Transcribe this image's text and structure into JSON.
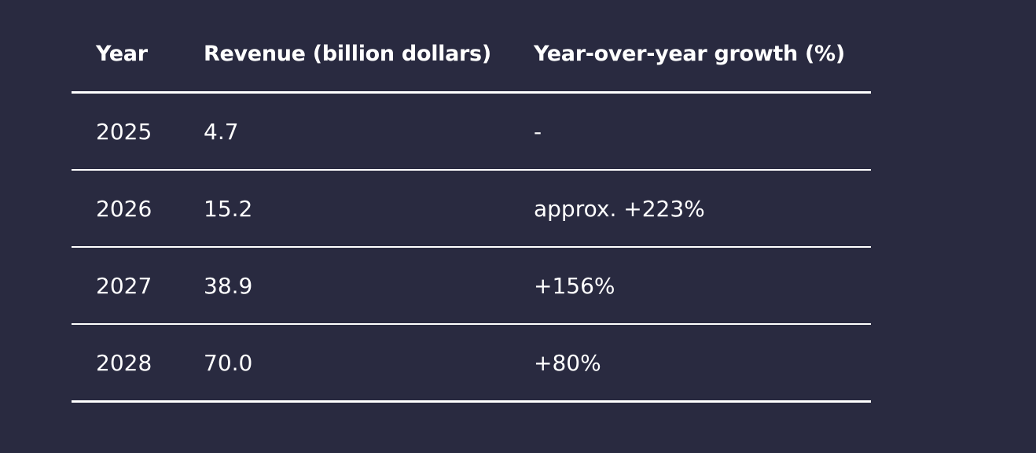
{
  "table": {
    "headers": {
      "year": "Year",
      "revenue": "Revenue (billion dollars)",
      "growth": "Year-over-year growth (%)"
    },
    "rows": [
      {
        "year": "2025",
        "revenue": "4.7",
        "growth": "-"
      },
      {
        "year": "2026",
        "revenue": "15.2",
        "growth": "approx. +223%"
      },
      {
        "year": "2027",
        "revenue": "38.9",
        "growth": "+156%"
      },
      {
        "year": "2028",
        "revenue": "70.0",
        "growth": "+80%"
      }
    ]
  },
  "colors": {
    "background": "#292a40",
    "text": "#ffffff",
    "rule": "#ffffff"
  }
}
